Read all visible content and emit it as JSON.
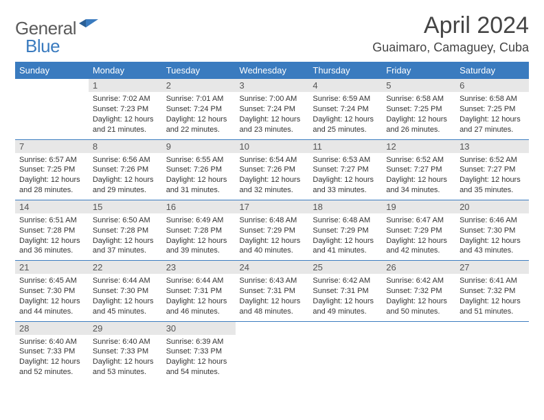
{
  "brand": {
    "part1": "General",
    "part2": "Blue"
  },
  "title": "April 2024",
  "location": "Guaimaro, Camaguey, Cuba",
  "colors": {
    "header_bg": "#3a7bbf",
    "daynum_bg": "#e7e7e7",
    "rule": "#3a7bbf"
  },
  "weekdays": [
    "Sunday",
    "Monday",
    "Tuesday",
    "Wednesday",
    "Thursday",
    "Friday",
    "Saturday"
  ],
  "cells": [
    {
      "n": "",
      "sr": "",
      "ss": "",
      "dl": ""
    },
    {
      "n": "1",
      "sr": "Sunrise: 7:02 AM",
      "ss": "Sunset: 7:23 PM",
      "dl": "Daylight: 12 hours and 21 minutes."
    },
    {
      "n": "2",
      "sr": "Sunrise: 7:01 AM",
      "ss": "Sunset: 7:24 PM",
      "dl": "Daylight: 12 hours and 22 minutes."
    },
    {
      "n": "3",
      "sr": "Sunrise: 7:00 AM",
      "ss": "Sunset: 7:24 PM",
      "dl": "Daylight: 12 hours and 23 minutes."
    },
    {
      "n": "4",
      "sr": "Sunrise: 6:59 AM",
      "ss": "Sunset: 7:24 PM",
      "dl": "Daylight: 12 hours and 25 minutes."
    },
    {
      "n": "5",
      "sr": "Sunrise: 6:58 AM",
      "ss": "Sunset: 7:25 PM",
      "dl": "Daylight: 12 hours and 26 minutes."
    },
    {
      "n": "6",
      "sr": "Sunrise: 6:58 AM",
      "ss": "Sunset: 7:25 PM",
      "dl": "Daylight: 12 hours and 27 minutes."
    },
    {
      "n": "7",
      "sr": "Sunrise: 6:57 AM",
      "ss": "Sunset: 7:25 PM",
      "dl": "Daylight: 12 hours and 28 minutes."
    },
    {
      "n": "8",
      "sr": "Sunrise: 6:56 AM",
      "ss": "Sunset: 7:26 PM",
      "dl": "Daylight: 12 hours and 29 minutes."
    },
    {
      "n": "9",
      "sr": "Sunrise: 6:55 AM",
      "ss": "Sunset: 7:26 PM",
      "dl": "Daylight: 12 hours and 31 minutes."
    },
    {
      "n": "10",
      "sr": "Sunrise: 6:54 AM",
      "ss": "Sunset: 7:26 PM",
      "dl": "Daylight: 12 hours and 32 minutes."
    },
    {
      "n": "11",
      "sr": "Sunrise: 6:53 AM",
      "ss": "Sunset: 7:27 PM",
      "dl": "Daylight: 12 hours and 33 minutes."
    },
    {
      "n": "12",
      "sr": "Sunrise: 6:52 AM",
      "ss": "Sunset: 7:27 PM",
      "dl": "Daylight: 12 hours and 34 minutes."
    },
    {
      "n": "13",
      "sr": "Sunrise: 6:52 AM",
      "ss": "Sunset: 7:27 PM",
      "dl": "Daylight: 12 hours and 35 minutes."
    },
    {
      "n": "14",
      "sr": "Sunrise: 6:51 AM",
      "ss": "Sunset: 7:28 PM",
      "dl": "Daylight: 12 hours and 36 minutes."
    },
    {
      "n": "15",
      "sr": "Sunrise: 6:50 AM",
      "ss": "Sunset: 7:28 PM",
      "dl": "Daylight: 12 hours and 37 minutes."
    },
    {
      "n": "16",
      "sr": "Sunrise: 6:49 AM",
      "ss": "Sunset: 7:28 PM",
      "dl": "Daylight: 12 hours and 39 minutes."
    },
    {
      "n": "17",
      "sr": "Sunrise: 6:48 AM",
      "ss": "Sunset: 7:29 PM",
      "dl": "Daylight: 12 hours and 40 minutes."
    },
    {
      "n": "18",
      "sr": "Sunrise: 6:48 AM",
      "ss": "Sunset: 7:29 PM",
      "dl": "Daylight: 12 hours and 41 minutes."
    },
    {
      "n": "19",
      "sr": "Sunrise: 6:47 AM",
      "ss": "Sunset: 7:29 PM",
      "dl": "Daylight: 12 hours and 42 minutes."
    },
    {
      "n": "20",
      "sr": "Sunrise: 6:46 AM",
      "ss": "Sunset: 7:30 PM",
      "dl": "Daylight: 12 hours and 43 minutes."
    },
    {
      "n": "21",
      "sr": "Sunrise: 6:45 AM",
      "ss": "Sunset: 7:30 PM",
      "dl": "Daylight: 12 hours and 44 minutes."
    },
    {
      "n": "22",
      "sr": "Sunrise: 6:44 AM",
      "ss": "Sunset: 7:30 PM",
      "dl": "Daylight: 12 hours and 45 minutes."
    },
    {
      "n": "23",
      "sr": "Sunrise: 6:44 AM",
      "ss": "Sunset: 7:31 PM",
      "dl": "Daylight: 12 hours and 46 minutes."
    },
    {
      "n": "24",
      "sr": "Sunrise: 6:43 AM",
      "ss": "Sunset: 7:31 PM",
      "dl": "Daylight: 12 hours and 48 minutes."
    },
    {
      "n": "25",
      "sr": "Sunrise: 6:42 AM",
      "ss": "Sunset: 7:31 PM",
      "dl": "Daylight: 12 hours and 49 minutes."
    },
    {
      "n": "26",
      "sr": "Sunrise: 6:42 AM",
      "ss": "Sunset: 7:32 PM",
      "dl": "Daylight: 12 hours and 50 minutes."
    },
    {
      "n": "27",
      "sr": "Sunrise: 6:41 AM",
      "ss": "Sunset: 7:32 PM",
      "dl": "Daylight: 12 hours and 51 minutes."
    },
    {
      "n": "28",
      "sr": "Sunrise: 6:40 AM",
      "ss": "Sunset: 7:33 PM",
      "dl": "Daylight: 12 hours and 52 minutes."
    },
    {
      "n": "29",
      "sr": "Sunrise: 6:40 AM",
      "ss": "Sunset: 7:33 PM",
      "dl": "Daylight: 12 hours and 53 minutes."
    },
    {
      "n": "30",
      "sr": "Sunrise: 6:39 AM",
      "ss": "Sunset: 7:33 PM",
      "dl": "Daylight: 12 hours and 54 minutes."
    },
    {
      "n": "",
      "sr": "",
      "ss": "",
      "dl": ""
    },
    {
      "n": "",
      "sr": "",
      "ss": "",
      "dl": ""
    },
    {
      "n": "",
      "sr": "",
      "ss": "",
      "dl": ""
    },
    {
      "n": "",
      "sr": "",
      "ss": "",
      "dl": ""
    }
  ]
}
